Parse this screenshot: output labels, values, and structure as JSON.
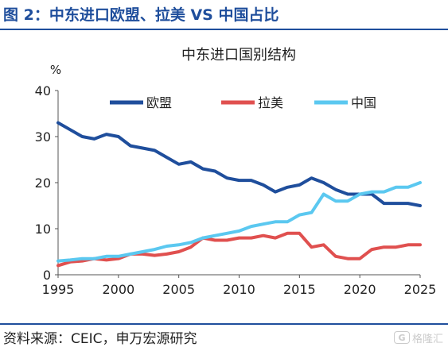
{
  "header": {
    "title": "图 2：中东进口欧盟、拉美 VS 中国占比"
  },
  "footer": {
    "source": "资料来源：CEIC，申万宏源研究"
  },
  "watermark": {
    "icon": "gelonghui-logo-icon",
    "text": "格隆汇"
  },
  "chart_data": {
    "type": "line",
    "title": "中东进口国别结构",
    "ylabel": "%",
    "xlabel": "",
    "xlim": [
      1995,
      2025
    ],
    "ylim": [
      0,
      40
    ],
    "xticks": [
      1995,
      2000,
      2005,
      2010,
      2015,
      2020,
      2025
    ],
    "yticks": [
      0,
      10,
      20,
      30,
      40
    ],
    "grid": false,
    "legend_position": "top-center",
    "series": [
      {
        "name": "欧盟",
        "color": "#1f4e9c",
        "x": [
          1995,
          1996,
          1997,
          1998,
          1999,
          2000,
          2001,
          2002,
          2003,
          2004,
          2005,
          2006,
          2007,
          2008,
          2009,
          2010,
          2011,
          2012,
          2013,
          2014,
          2015,
          2016,
          2017,
          2018,
          2019,
          2020,
          2021,
          2022,
          2023,
          2024,
          2025
        ],
        "values": [
          33,
          31.5,
          30,
          29.5,
          30.5,
          30,
          28,
          27.5,
          27,
          25.5,
          24,
          24.5,
          23,
          22.5,
          21,
          20.5,
          20.5,
          19.5,
          18,
          19,
          19.5,
          21,
          20,
          18.5,
          17.5,
          17.5,
          17.5,
          15.5,
          15.5,
          15.5,
          15
        ]
      },
      {
        "name": "拉美",
        "color": "#e0504f",
        "x": [
          1995,
          1996,
          1997,
          1998,
          1999,
          2000,
          2001,
          2002,
          2003,
          2004,
          2005,
          2006,
          2007,
          2008,
          2009,
          2010,
          2011,
          2012,
          2013,
          2014,
          2015,
          2016,
          2017,
          2018,
          2019,
          2020,
          2021,
          2022,
          2023,
          2024,
          2025
        ],
        "values": [
          2,
          2.8,
          3,
          3.5,
          3.2,
          3.5,
          4.5,
          4.5,
          4.2,
          4.5,
          5,
          6,
          8,
          7.5,
          7.5,
          8,
          8,
          8.5,
          8,
          9,
          9,
          6,
          6.5,
          4,
          3.5,
          3.5,
          5.5,
          6,
          6,
          6.5,
          6.5
        ]
      },
      {
        "name": "中国",
        "color": "#5bc8f0",
        "x": [
          1995,
          1996,
          1997,
          1998,
          1999,
          2000,
          2001,
          2002,
          2003,
          2004,
          2005,
          2006,
          2007,
          2008,
          2009,
          2010,
          2011,
          2012,
          2013,
          2014,
          2015,
          2016,
          2017,
          2018,
          2019,
          2020,
          2021,
          2022,
          2023,
          2024,
          2025
        ],
        "values": [
          3,
          3.2,
          3.5,
          3.5,
          4,
          4,
          4.5,
          5,
          5.5,
          6.2,
          6.5,
          7,
          8,
          8.5,
          9,
          9.5,
          10.5,
          11,
          11.5,
          11.5,
          13,
          13.5,
          17.5,
          16,
          16,
          17.5,
          18,
          18,
          19,
          19,
          20
        ]
      }
    ]
  }
}
